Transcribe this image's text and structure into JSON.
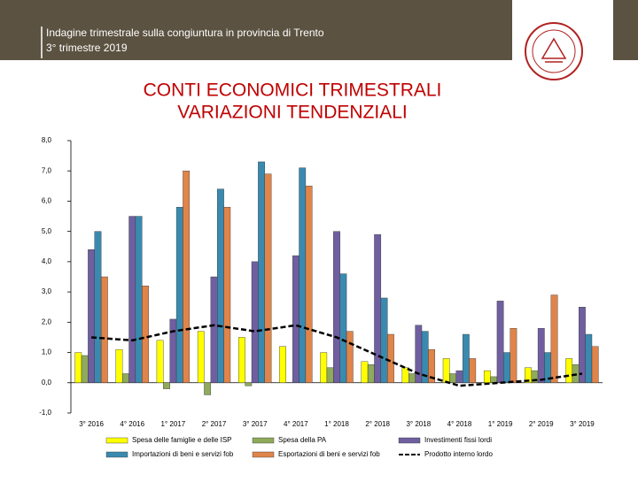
{
  "header": {
    "title": "Indagine trimestrale sulla congiuntura in provincia di Trento",
    "subtitle": "3° trimestre 2019"
  },
  "chart_data": {
    "type": "bar",
    "title": [
      "CONTI ECONOMICI TRIMESTRALI",
      "VARIAZIONI TENDENZIALI"
    ],
    "categories": [
      "3° 2016",
      "4° 2016",
      "1° 2017",
      "2° 2017",
      "3° 2017",
      "4° 2017",
      "1° 2018",
      "2° 2018",
      "3° 2018",
      "4° 2018",
      "1° 2019",
      "2° 2019",
      "3° 2019"
    ],
    "series": [
      {
        "name": "Spesa delle famiglie e delle ISP",
        "type": "bar",
        "color": "#ffff00",
        "values": [
          1.0,
          1.1,
          1.4,
          1.7,
          1.5,
          1.2,
          1.0,
          0.7,
          0.5,
          0.8,
          0.4,
          0.5,
          0.8
        ]
      },
      {
        "name": "Spesa della PA",
        "type": "bar",
        "color": "#8faa5c",
        "values": [
          0.9,
          0.3,
          -0.2,
          -0.4,
          -0.1,
          0.0,
          0.5,
          0.6,
          0.3,
          0.3,
          0.2,
          0.4,
          0.6
        ]
      },
      {
        "name": "Investimenti fissi lordi",
        "type": "bar",
        "color": "#6f5fa0",
        "values": [
          4.4,
          5.5,
          2.1,
          3.5,
          4.0,
          4.2,
          5.0,
          4.9,
          1.9,
          0.4,
          2.7,
          1.8,
          2.5
        ]
      },
      {
        "name": "Importazioni di beni e servizi fob",
        "type": "bar",
        "color": "#3a8ab0",
        "values": [
          5.0,
          5.5,
          5.8,
          6.4,
          7.3,
          7.1,
          3.6,
          2.8,
          1.7,
          1.6,
          1.0,
          1.0,
          1.6
        ]
      },
      {
        "name": "Esportazioni di beni e servizi fob",
        "type": "bar",
        "color": "#e0844a",
        "values": [
          3.5,
          3.2,
          7.0,
          5.8,
          6.9,
          6.5,
          1.7,
          1.6,
          1.1,
          0.8,
          1.8,
          2.9,
          1.2
        ]
      },
      {
        "name": "Prodotto interno lordo",
        "type": "line",
        "color": "#000000",
        "values": [
          1.5,
          1.4,
          1.7,
          1.9,
          1.7,
          1.9,
          1.5,
          0.9,
          0.3,
          -0.1,
          0.0,
          0.1,
          0.3
        ]
      }
    ],
    "ylim": [
      -1,
      8
    ],
    "yticks": [
      {
        "value": -1,
        "label": "-1,0"
      },
      {
        "value": 0,
        "label": "0,0"
      },
      {
        "value": 1,
        "label": "1,0"
      },
      {
        "value": 2,
        "label": "2,0"
      },
      {
        "value": 3,
        "label": "3,0"
      },
      {
        "value": 4,
        "label": "4,0"
      },
      {
        "value": 5,
        "label": "5,0"
      },
      {
        "value": 6,
        "label": "6,0"
      },
      {
        "value": 7,
        "label": "7,0"
      },
      {
        "value": 8,
        "label": "8,0"
      }
    ],
    "legend": "bottom"
  }
}
